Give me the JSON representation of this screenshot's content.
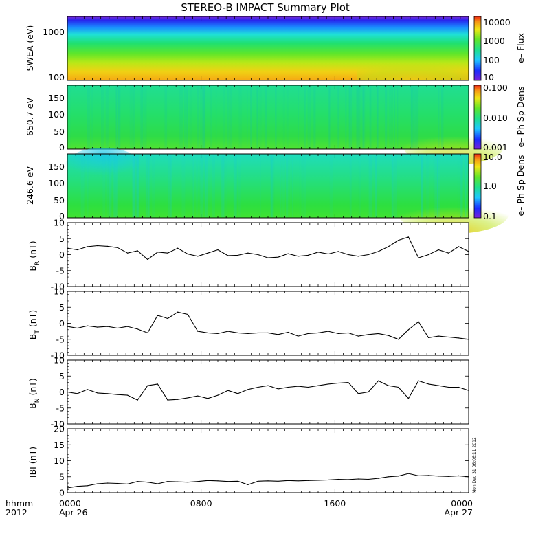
{
  "chart_data": {
    "type": "multi-panel time series",
    "title": "STEREO-B IMPACT Summary Plot",
    "time_axis": {
      "range_hours": [
        0,
        24
      ],
      "ticks": [
        {
          "hour": 0,
          "line1": "0000",
          "line2": "Apr 26"
        },
        {
          "hour": 8,
          "line1": "0800",
          "line2": ""
        },
        {
          "hour": 16,
          "line1": "1600",
          "line2": ""
        },
        {
          "hour": 24,
          "line1": "0000",
          "line2": "Apr 27"
        }
      ],
      "label_line1": "hhmm",
      "label_line2": "2012"
    },
    "spectrogram_panels": [
      {
        "id": "swea",
        "ylabel": "SWEA (eV)",
        "scale": "log",
        "yticks": [
          {
            "v": 1000,
            "t": "1000"
          },
          {
            "v": 100,
            "t": "100"
          }
        ],
        "colorbar_label": "e– Flux",
        "colorbar_ticks": [
          "10000",
          "1000",
          "100",
          "10"
        ]
      },
      {
        "id": "pad650",
        "ylabel": "650.7 eV",
        "scale": "linear",
        "yticks": [
          {
            "v": 150,
            "t": "150"
          },
          {
            "v": 100,
            "t": "100"
          },
          {
            "v": 50,
            "t": "50"
          },
          {
            "v": 0,
            "t": "0"
          }
        ],
        "colorbar_label": "e– Ph Sp Dens",
        "colorbar_ticks": [
          "0.100",
          "0.010",
          "0.001"
        ]
      },
      {
        "id": "pad246",
        "ylabel": "246.6 eV",
        "scale": "linear",
        "yticks": [
          {
            "v": 150,
            "t": "150"
          },
          {
            "v": 100,
            "t": "100"
          },
          {
            "v": 50,
            "t": "50"
          },
          {
            "v": 0,
            "t": "0"
          }
        ],
        "colorbar_label": "e– Ph Sp Dens",
        "colorbar_ticks": [
          "10.0",
          "1.0",
          "0.1"
        ]
      }
    ],
    "line_panels": [
      {
        "id": "br",
        "ylabel_main": "B",
        "ylabel_sub": "R",
        "ylabel_unit": "(nT)",
        "ylim": [
          -10,
          10
        ],
        "yticks": [
          10,
          5,
          0,
          -5,
          -10
        ],
        "x_hours": [
          0,
          0.6,
          1.2,
          1.8,
          2.4,
          3,
          3.6,
          4.2,
          4.8,
          5.4,
          6,
          6.6,
          7.2,
          7.8,
          8.4,
          9,
          9.6,
          10.2,
          10.8,
          11.4,
          12,
          12.6,
          13.2,
          13.8,
          14.4,
          15,
          15.6,
          16.2,
          16.8,
          17.4,
          18,
          18.6,
          19.2,
          19.8,
          20.4,
          21,
          21.6,
          22.2,
          22.8,
          23.4,
          24
        ],
        "values": [
          2,
          1.5,
          2.5,
          2.8,
          2.6,
          2.2,
          0.5,
          1.2,
          -1.5,
          0.8,
          0.5,
          2,
          0.2,
          -0.5,
          0.5,
          1.5,
          -0.3,
          -0.2,
          0.5,
          0,
          -1,
          -0.8,
          0.3,
          -0.5,
          -0.2,
          0.8,
          0.2,
          1,
          0,
          -0.5,
          0,
          1,
          2.5,
          4.5,
          5.5,
          -1,
          0,
          1.5,
          0.5,
          2.5,
          1
        ]
      },
      {
        "id": "bt",
        "ylabel_main": "B",
        "ylabel_sub": "T",
        "ylabel_unit": "(nT)",
        "ylim": [
          -10,
          10
        ],
        "yticks": [
          10,
          5,
          0,
          -5,
          -10
        ],
        "x_hours": [
          0,
          0.6,
          1.2,
          1.8,
          2.4,
          3,
          3.6,
          4.2,
          4.8,
          5.4,
          6,
          6.6,
          7.2,
          7.8,
          8.4,
          9,
          9.6,
          10.2,
          10.8,
          11.4,
          12,
          12.6,
          13.2,
          13.8,
          14.4,
          15,
          15.6,
          16.2,
          16.8,
          17.4,
          18,
          18.6,
          19.2,
          19.8,
          20.4,
          21,
          21.6,
          22.2,
          22.8,
          23.4,
          24
        ],
        "values": [
          -1,
          -1.5,
          -0.8,
          -1.2,
          -1,
          -1.5,
          -1,
          -1.8,
          -3,
          2.5,
          1.5,
          3.5,
          2.8,
          -2.5,
          -3,
          -3.2,
          -2.5,
          -3,
          -3.2,
          -3,
          -3,
          -3.5,
          -2.8,
          -4,
          -3.2,
          -3,
          -2.5,
          -3.2,
          -3,
          -4,
          -3.5,
          -3.2,
          -3.8,
          -5,
          -2,
          0.5,
          -4.5,
          -4,
          -4.3,
          -4.6,
          -5
        ]
      },
      {
        "id": "bn",
        "ylabel_main": "B",
        "ylabel_sub": "N",
        "ylabel_unit": "(nT)",
        "ylim": [
          -10,
          10
        ],
        "yticks": [
          10,
          5,
          0,
          -5,
          -10
        ],
        "x_hours": [
          0,
          0.6,
          1.2,
          1.8,
          2.4,
          3,
          3.6,
          4.2,
          4.8,
          5.4,
          6,
          6.6,
          7.2,
          7.8,
          8.4,
          9,
          9.6,
          10.2,
          10.8,
          11.4,
          12,
          12.6,
          13.2,
          13.8,
          14.4,
          15,
          15.6,
          16.2,
          16.8,
          17.4,
          18,
          18.6,
          19.2,
          19.8,
          20.4,
          21,
          21.6,
          22.2,
          22.8,
          23.4,
          24
        ],
        "values": [
          0,
          -0.5,
          0.8,
          -0.3,
          -0.5,
          -0.8,
          -1,
          -2.5,
          2,
          2.5,
          -2.5,
          -2.3,
          -1.8,
          -1.2,
          -2,
          -1,
          0.5,
          -0.5,
          0.8,
          1.5,
          2,
          1,
          1.5,
          1.8,
          1.5,
          2,
          2.5,
          2.8,
          3,
          -0.5,
          0,
          3.5,
          2,
          1.5,
          -2,
          3.5,
          2.5,
          2,
          1.5,
          1.5,
          0.5
        ]
      },
      {
        "id": "bmag",
        "ylabel_main": "IBI (nT)",
        "ylabel_sub": "",
        "ylabel_unit": "",
        "ylim": [
          0,
          20
        ],
        "yticks": [
          20,
          15,
          10,
          5,
          0
        ],
        "x_hours": [
          0,
          0.6,
          1.2,
          1.8,
          2.4,
          3,
          3.6,
          4.2,
          4.8,
          5.4,
          6,
          6.6,
          7.2,
          7.8,
          8.4,
          9,
          9.6,
          10.2,
          10.8,
          11.4,
          12,
          12.6,
          13.2,
          13.8,
          14.4,
          15,
          15.6,
          16.2,
          16.8,
          17.4,
          18,
          18.6,
          19.2,
          19.8,
          20.4,
          21,
          21.6,
          22.2,
          22.8,
          23.4,
          24
        ],
        "values": [
          1.5,
          2,
          2.2,
          2.8,
          3,
          2.9,
          2.7,
          3.5,
          3.3,
          2.8,
          3.5,
          3.4,
          3.3,
          3.5,
          3.8,
          3.7,
          3.5,
          3.6,
          2.5,
          3.6,
          3.7,
          3.6,
          3.8,
          3.7,
          3.8,
          3.9,
          4,
          4.2,
          4.1,
          4.3,
          4.2,
          4.5,
          5,
          5.2,
          6,
          5.3,
          5.4,
          5.2,
          5.1,
          5.3,
          5
        ]
      }
    ]
  },
  "stamp_text": "Mon Dec 31 06:06:11 2012"
}
